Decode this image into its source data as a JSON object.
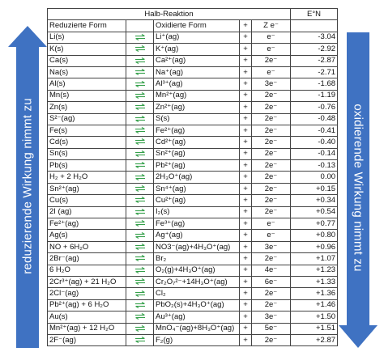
{
  "left_arrow_text": "reduzierende Wirkung nimmt zu",
  "right_arrow_text": "oxidierende Wirkung nimmt zu",
  "colors": {
    "arrow": "#3f72c2",
    "equilibrium_arrow": "#35a04a"
  },
  "table": {
    "title": "Halb-Reaktion",
    "e0_header": "E°N",
    "headers": {
      "reduced": "Reduzierte Form",
      "oxidized": "Oxidierte Form",
      "plus": "+",
      "ze": "Z e⁻"
    },
    "rows": [
      {
        "red": "Li(s)",
        "ox": "Li⁺(ag)",
        "plus": "+",
        "ze": "e⁻",
        "e0": "-3.04"
      },
      {
        "red": "K(s)",
        "ox": "K⁺(ag)",
        "plus": "+",
        "ze": "e⁻",
        "e0": "-2.92"
      },
      {
        "red": "Ca(s)",
        "ox": "Ca²⁺(ag)",
        "plus": "+",
        "ze": "2e⁻",
        "e0": "-2.87"
      },
      {
        "red": "Na(s)",
        "ox": "Na⁺(ag)",
        "plus": "+",
        "ze": "e⁻",
        "e0": "-2.71"
      },
      {
        "red": "Al(s)",
        "ox": "Al³⁺(ag)",
        "plus": "+",
        "ze": "3e⁻",
        "e0": "-1.68"
      },
      {
        "red": "Mn(s)",
        "ox": "Mn²⁺(ag)",
        "plus": "+",
        "ze": "2e⁻",
        "e0": "-1.19"
      },
      {
        "red": "Zn(s)",
        "ox": "Zn²⁺(ag)",
        "plus": "+",
        "ze": "2e⁻",
        "e0": "-0.76"
      },
      {
        "red": "S²⁻(ag)",
        "ox": "S(s)",
        "plus": "+",
        "ze": "2e⁻",
        "e0": "-0.48"
      },
      {
        "red": "Fe(s)",
        "ox": "Fe²⁺(ag)",
        "plus": "+",
        "ze": "2e⁻",
        "e0": "-0.41"
      },
      {
        "red": "Cd(s)",
        "ox": "Cd²⁺(ag)",
        "plus": "+",
        "ze": "2e⁻",
        "e0": "-0.40"
      },
      {
        "red": "Sn(s)",
        "ox": "Sn²⁺(ag)",
        "plus": "+",
        "ze": "2e⁻",
        "e0": "-0.14"
      },
      {
        "red": "Pb(s)",
        "ox": "Pb²⁺(ag)",
        "plus": "+",
        "ze": "2e⁻",
        "e0": "-0.13"
      },
      {
        "red": "H₂ + 2 H₂O",
        "ox": "2H₃O⁺(ag)",
        "plus": "+",
        "ze": "2e⁻",
        "e0": "0.00"
      },
      {
        "red": "Sn²⁺(ag)",
        "ox": "Sn⁴⁺(ag)",
        "plus": "+",
        "ze": "2e⁻",
        "e0": "+0.15"
      },
      {
        "red": "Cu(s)",
        "ox": "Cu²⁺(ag)",
        "plus": "+",
        "ze": "2e⁻",
        "e0": "+0.34"
      },
      {
        "red": "2I (ag)",
        "ox": "I₂(s)",
        "plus": "+",
        "ze": "2e⁻",
        "e0": "+0.54"
      },
      {
        "red": "Fe²⁺(ag)",
        "ox": "Fe³⁺(ag)",
        "plus": "+",
        "ze": "e⁻",
        "e0": "+0.77"
      },
      {
        "red": "Ag(s)",
        "ox": "Ag⁺(ag)",
        "plus": "+",
        "ze": "e⁻",
        "e0": "+0.80"
      },
      {
        "red": "NO + 6H₂O",
        "ox": "NO3⁻(ag)+4H₃O⁺(ag)",
        "plus": "+",
        "ze": "3e⁻",
        "e0": "+0.96"
      },
      {
        "red": "2Br⁻(ag)",
        "ox": "Br₂",
        "plus": "+",
        "ze": "2e⁻",
        "e0": "+1.07"
      },
      {
        "red": "6 H₂O",
        "ox": "O₂(g)+4H₃O⁺(ag)",
        "plus": "+",
        "ze": "4e⁻",
        "e0": "+1.23"
      },
      {
        "red": "2Cr³⁺(ag) + 21 H₂O",
        "ox": "Cr₂O₇²⁻+14H₃O⁺(ag)",
        "plus": "+",
        "ze": "6e⁻",
        "e0": "+1.33"
      },
      {
        "red": "2Cl⁻(ag)",
        "ox": "Cl₂",
        "plus": "+",
        "ze": "2e⁻",
        "e0": "+1.36"
      },
      {
        "red": "Pb²⁺(ag) + 6 H₂O",
        "ox": "PbO₂(s)+4H₃O⁺(ag)",
        "plus": "+",
        "ze": "2e⁻",
        "e0": "+1.46"
      },
      {
        "red": "Au(s)",
        "ox": "Au³⁺(ag)",
        "plus": "+",
        "ze": "3e⁻",
        "e0": "+1.50"
      },
      {
        "red": "Mn²⁺(ag) + 12 H₂O",
        "ox": "MnO₄⁻(ag)+8H₃O⁺(ag)",
        "plus": "+",
        "ze": "5e⁻",
        "e0": "+1.51"
      },
      {
        "red": "2F⁻(ag)",
        "ox": "F₂(g)",
        "plus": "+",
        "ze": "2e⁻",
        "e0": "+2.87"
      }
    ]
  }
}
